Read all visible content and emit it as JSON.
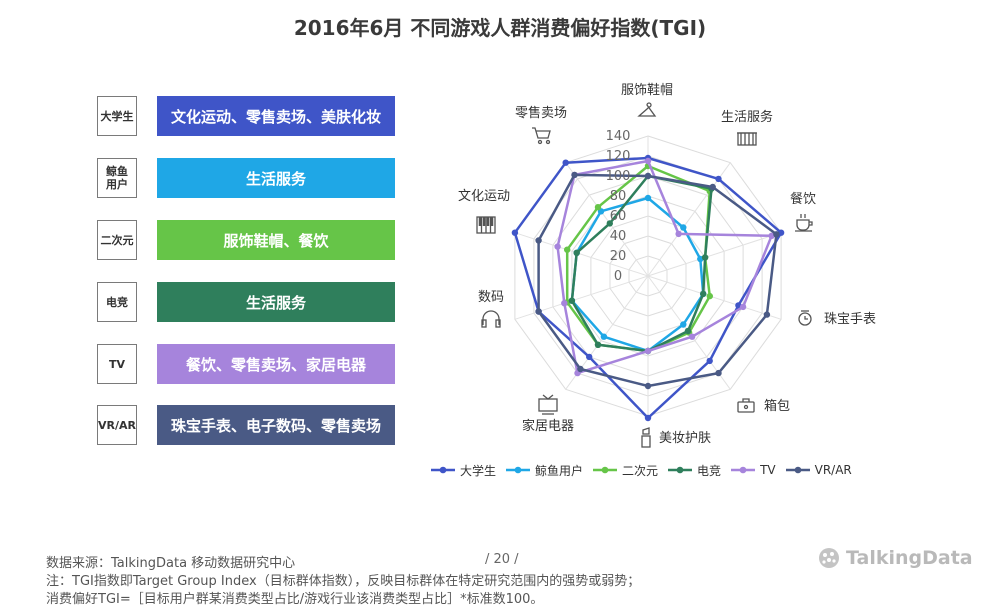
{
  "title": "2016年6月 不同游戏人群消费偏好指数(TGI)",
  "groups": [
    {
      "label": "大学生",
      "desc": "文化运动、零售卖场、美肤化妆",
      "color": "#3f55c8"
    },
    {
      "label": "鲸鱼\n用户",
      "desc": "生活服务",
      "color": "#1fa7e6"
    },
    {
      "label": "二次元",
      "desc": "服饰鞋帽、餐饮",
      "color": "#66c548"
    },
    {
      "label": "电竞",
      "desc": "生活服务",
      "color": "#2f7f5c"
    },
    {
      "label": "TV",
      "desc": "餐饮、零售卖场、家居电器",
      "color": "#a684dc"
    },
    {
      "label": "VR/AR",
      "desc": "珠宝手表、电子数码、零售卖场",
      "color": "#4a5a85"
    }
  ],
  "chart_data": {
    "type": "radar",
    "title": "2016年6月 不同游戏人群消费偏好指数(TGI)",
    "categories": [
      "服饰鞋帽",
      "生活服务",
      "餐饮",
      "珠宝手表",
      "箱包",
      "美妆护肤",
      "家居电器",
      "数码",
      "文化运动",
      "零售卖场"
    ],
    "radial_ticks": [
      0,
      20,
      40,
      60,
      80,
      100,
      120,
      140
    ],
    "rmax": 140,
    "series": [
      {
        "name": "大学生",
        "color": "#3f55c8",
        "values": [
          118,
          120,
          140,
          95,
          105,
          142,
          100,
          115,
          140,
          140
        ]
      },
      {
        "name": "鲸鱼用户",
        "color": "#1fa7e6",
        "values": [
          78,
          60,
          55,
          58,
          60,
          75,
          75,
          80,
          75,
          80
        ]
      },
      {
        "name": "二次元",
        "color": "#66c548",
        "values": [
          110,
          105,
          60,
          65,
          70,
          75,
          85,
          85,
          85,
          85
        ]
      },
      {
        "name": "电竞",
        "color": "#2f7f5c",
        "values": [
          100,
          108,
          60,
          58,
          68,
          75,
          85,
          80,
          75,
          65
        ]
      },
      {
        "name": "TV",
        "color": "#a684dc",
        "values": [
          115,
          52,
          130,
          100,
          75,
          75,
          120,
          88,
          95,
          125
        ]
      },
      {
        "name": "VR/AR",
        "color": "#4a5a85",
        "values": [
          100,
          110,
          135,
          125,
          120,
          110,
          115,
          115,
          115,
          125
        ]
      }
    ],
    "legend": "bottom"
  },
  "footer": {
    "source": "数据来源：TalkingData  移动数据研究中心",
    "page": "/  20  /",
    "note1": "注：TGI指数即Target  Group Index（目标群体指数），反映目标群体在特定研究范围内的强势或弱势；",
    "note2": "消费偏好TGI=［目标用户群某消费类型占比/游戏行业该消费类型占比］*标准数100。"
  },
  "logo": "TalkingData",
  "icons": [
    "hanger-icon",
    "building-icon",
    "coffee-cup-icon",
    "watch-icon",
    "bag-icon",
    "lipstick-icon",
    "tv-icon",
    "headphones-icon",
    "piano-keys-icon",
    "shopping-cart-icon"
  ]
}
